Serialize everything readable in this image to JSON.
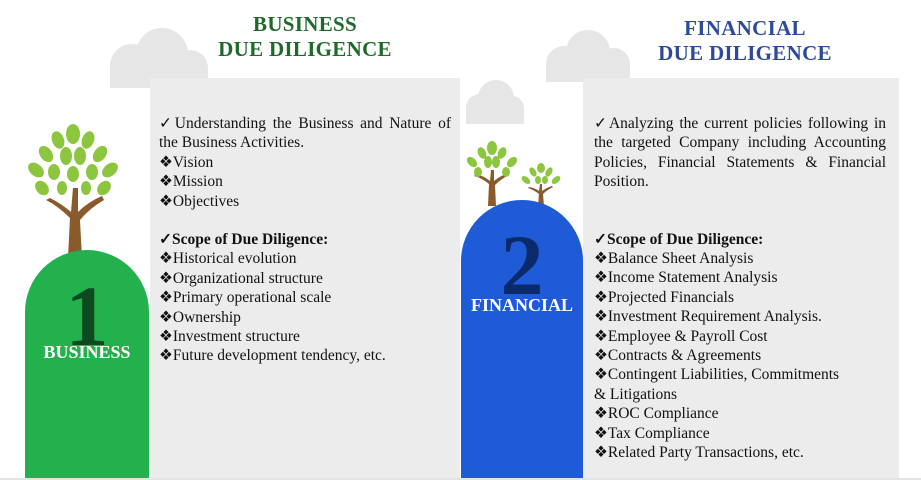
{
  "business": {
    "title_line1": "BUSINESS",
    "title_line2": "DUE DILIGENCE",
    "number": "1",
    "tab_label": "BUSINESS",
    "intro": "✓Understanding the Business and Nature of the Business Activities.",
    "bullets": [
      "❖Vision",
      "❖Mission",
      "❖Objectives"
    ],
    "scope_heading": "✓Scope of Due Diligence:",
    "scope_items": [
      "❖Historical evolution",
      "❖Organizational structure",
      "❖Primary operational scale",
      "❖Ownership",
      "❖Investment structure",
      "❖Future development tendency, etc."
    ]
  },
  "financial": {
    "title_line1": "FINANCIAL",
    "title_line2": "DUE DILIGENCE",
    "number": "2",
    "tab_label": "FINANCIAL",
    "intro": "✓Analyzing the current policies following in the targeted Company including Accounting Policies, Financial Statements & Financial Position.",
    "scope_heading": "✓Scope of Due Diligence:",
    "scope_items": [
      "❖Balance Sheet Analysis",
      "❖Income Statement Analysis",
      "❖Projected Financials",
      "❖Investment Requirement Analysis.",
      "❖Employee & Payroll Cost",
      "❖Contracts & Agreements",
      "❖Contingent Liabilities, Commitments",
      "& Litigations",
      "❖ROC Compliance",
      "❖Tax Compliance",
      "❖Related Party Transactions, etc."
    ]
  },
  "colors": {
    "business_title": "#1f6a2a",
    "financial_title": "#2d4a9a",
    "green_tab": "#22b14c",
    "blue_tab": "#1f5bd6",
    "panel_bg": "#ececec"
  }
}
